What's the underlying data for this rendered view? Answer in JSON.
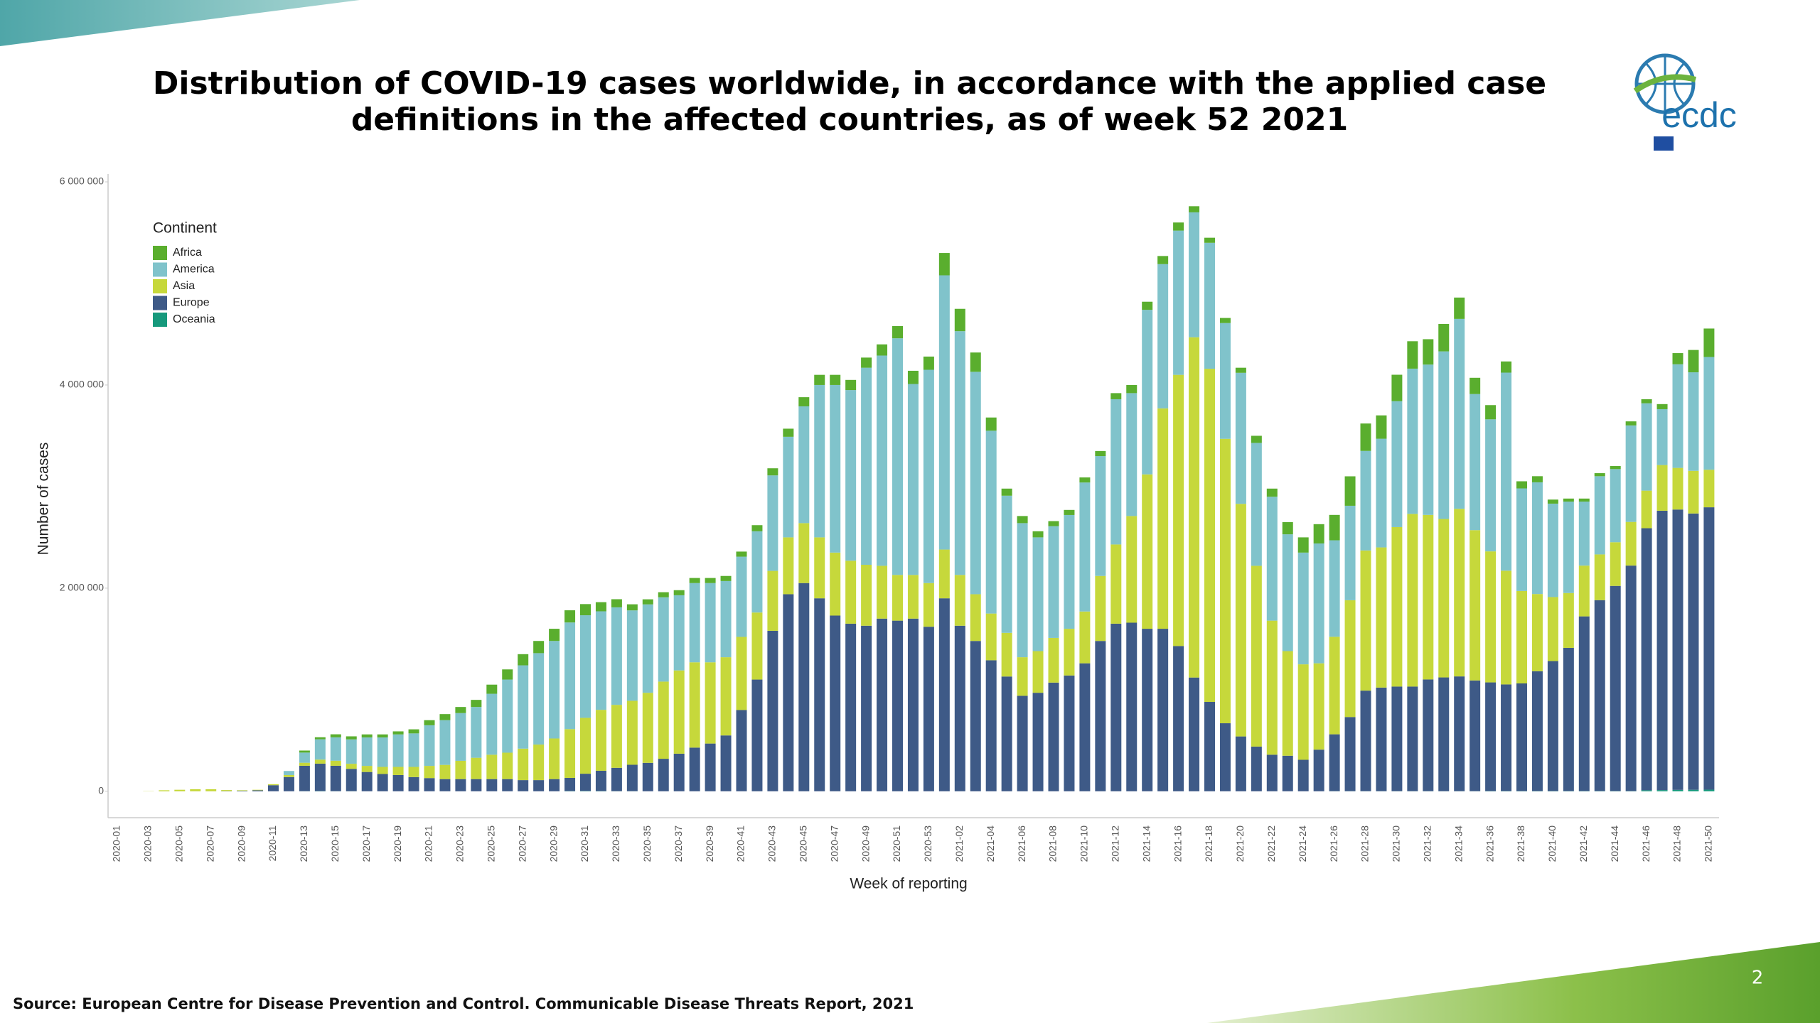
{
  "chart_data": {
    "type": "bar",
    "stacked": true,
    "title": [
      "Distribution of COVID-19 cases worldwide, in accordance with the applied case",
      "definitions in the affected countries, as of week 52 2021"
    ],
    "source": "Source: European Centre for Disease Prevention and Control. Communicable Disease Threats Report, 2021",
    "page_number": "2",
    "logo": "ecdc",
    "x_label": "Week of reporting",
    "y_label": "Number of cases",
    "legend_title": "Continent",
    "legend_position": "upper left",
    "grid": false,
    "ylim": [
      -260000,
      6000000
    ],
    "yticks": [
      0,
      {
        "value": 2000000,
        "label": "2 000 000"
      },
      {
        "value": 4000000,
        "label": "4 000 000"
      },
      {
        "value": 6000000,
        "label": "6 000 000"
      }
    ],
    "categories": [
      "2020-01",
      null,
      "2020-03",
      null,
      "2020-05",
      null,
      "2020-07",
      null,
      "2020-09",
      null,
      "2020-11",
      null,
      "2020-13",
      null,
      "2020-15",
      null,
      "2020-17",
      null,
      "2020-19",
      null,
      "2020-21",
      null,
      "2020-23",
      null,
      "2020-25",
      null,
      "2020-27",
      null,
      "2020-29",
      null,
      "2020-31",
      null,
      "2020-33",
      null,
      "2020-35",
      null,
      "2020-37",
      null,
      "2020-39",
      null,
      "2020-41",
      null,
      "2020-43",
      null,
      "2020-45",
      null,
      "2020-47",
      null,
      "2020-49",
      null,
      "2020-51",
      null,
      "2020-53",
      null,
      "2021-02",
      null,
      "2021-04",
      null,
      "2021-06",
      null,
      "2021-08",
      null,
      "2021-10",
      null,
      "2021-12",
      null,
      "2021-14",
      null,
      "2021-16",
      null,
      "2021-18",
      null,
      "2021-20",
      null,
      "2021-22",
      null,
      "2021-24",
      null,
      "2021-26",
      null,
      "2021-28",
      null,
      "2021-30",
      null,
      "2021-32",
      null,
      "2021-34",
      null,
      "2021-36",
      null,
      "2021-38",
      null,
      "2021-40",
      null,
      "2021-42",
      null,
      "2021-44",
      null,
      "2021-46",
      null,
      "2021-48",
      null,
      "2021-50"
    ],
    "series": [
      {
        "name": "Africa",
        "color": "#5aae2e",
        "values": [
          0,
          0,
          0,
          0,
          0,
          0,
          0,
          0,
          0,
          0,
          0,
          0,
          20000,
          20000,
          30000,
          30000,
          30000,
          30000,
          30000,
          40000,
          50000,
          60000,
          60000,
          70000,
          90000,
          100000,
          110000,
          120000,
          120000,
          120000,
          110000,
          90000,
          80000,
          60000,
          50000,
          50000,
          50000,
          50000,
          50000,
          50000,
          50000,
          60000,
          70000,
          80000,
          90000,
          100000,
          100000,
          100000,
          100000,
          110000,
          120000,
          130000,
          130000,
          220000,
          220000,
          190000,
          130000,
          70000,
          70000,
          60000,
          50000,
          50000,
          50000,
          50000,
          60000,
          80000,
          80000,
          80000,
          80000,
          60000,
          50000,
          50000,
          50000,
          70000,
          80000,
          120000,
          150000,
          190000,
          250000,
          290000,
          270000,
          230000,
          260000,
          270000,
          250000,
          270000,
          210000,
          160000,
          140000,
          110000,
          70000,
          60000,
          40000,
          30000,
          30000,
          30000,
          30000,
          40000,
          40000,
          50000,
          110000,
          220000,
          280000
        ]
      },
      {
        "name": "America",
        "color": "#80c3cb",
        "values": [
          0,
          0,
          0,
          0,
          0,
          0,
          0,
          0,
          0,
          0,
          0,
          40000,
          100000,
          200000,
          230000,
          240000,
          280000,
          290000,
          320000,
          330000,
          400000,
          440000,
          470000,
          500000,
          600000,
          720000,
          820000,
          900000,
          960000,
          1050000,
          1010000,
          970000,
          960000,
          890000,
          870000,
          830000,
          740000,
          780000,
          780000,
          750000,
          790000,
          800000,
          940000,
          990000,
          1150000,
          1500000,
          1650000,
          1680000,
          1940000,
          2070000,
          2330000,
          1880000,
          2100000,
          2700000,
          2400000,
          2190000,
          1800000,
          1350000,
          1320000,
          1120000,
          1100000,
          1120000,
          1270000,
          1180000,
          1430000,
          1210000,
          1620000,
          1420000,
          1420000,
          1230000,
          1240000,
          1140000,
          1290000,
          1210000,
          1220000,
          1150000,
          1100000,
          1180000,
          950000,
          930000,
          980000,
          1070000,
          1240000,
          1430000,
          1480000,
          1650000,
          1870000,
          1340000,
          1300000,
          1950000,
          1010000,
          1100000,
          920000,
          900000,
          630000,
          770000,
          720000,
          950000,
          860000,
          550000,
          1020000,
          970000,
          1110000
        ]
      },
      {
        "name": "Asia",
        "color": "#c6d83b",
        "values": [
          0,
          0,
          2000,
          10000,
          15000,
          20000,
          20000,
          10000,
          5000,
          5000,
          10000,
          20000,
          30000,
          40000,
          50000,
          50000,
          60000,
          70000,
          80000,
          100000,
          120000,
          140000,
          180000,
          210000,
          240000,
          260000,
          310000,
          350000,
          400000,
          480000,
          550000,
          600000,
          620000,
          630000,
          690000,
          760000,
          820000,
          840000,
          800000,
          770000,
          720000,
          660000,
          590000,
          560000,
          590000,
          600000,
          620000,
          620000,
          600000,
          520000,
          450000,
          430000,
          430000,
          480000,
          500000,
          460000,
          460000,
          430000,
          380000,
          410000,
          440000,
          460000,
          510000,
          640000,
          780000,
          1050000,
          1520000,
          2170000,
          2670000,
          3350000,
          3280000,
          2800000,
          2290000,
          1780000,
          1320000,
          1030000,
          940000,
          850000,
          960000,
          1150000,
          1380000,
          1380000,
          1570000,
          1700000,
          1620000,
          1560000,
          1650000,
          1480000,
          1290000,
          1120000,
          910000,
          760000,
          630000,
          540000,
          500000,
          450000,
          430000,
          430000,
          370000,
          450000,
          410000,
          420000,
          370000
        ]
      },
      {
        "name": "Europe",
        "color": "#3e5a87",
        "values": [
          0,
          0,
          0,
          0,
          0,
          0,
          0,
          2000,
          5000,
          10000,
          60000,
          140000,
          250000,
          270000,
          250000,
          220000,
          190000,
          170000,
          160000,
          140000,
          130000,
          120000,
          120000,
          120000,
          120000,
          120000,
          110000,
          110000,
          120000,
          130000,
          170000,
          200000,
          230000,
          260000,
          280000,
          320000,
          370000,
          430000,
          470000,
          550000,
          800000,
          1100000,
          1580000,
          1940000,
          2050000,
          1900000,
          1730000,
          1650000,
          1630000,
          1700000,
          1680000,
          1700000,
          1620000,
          1900000,
          1630000,
          1480000,
          1290000,
          1130000,
          940000,
          970000,
          1070000,
          1140000,
          1260000,
          1480000,
          1650000,
          1660000,
          1600000,
          1600000,
          1430000,
          1120000,
          880000,
          670000,
          540000,
          440000,
          360000,
          350000,
          310000,
          410000,
          560000,
          730000,
          990000,
          1020000,
          1030000,
          1030000,
          1100000,
          1120000,
          1130000,
          1090000,
          1070000,
          1050000,
          1060000,
          1180000,
          1280000,
          1410000,
          1720000,
          1880000,
          2020000,
          2220000,
          2580000,
          2750000,
          2760000,
          2720000,
          2780000
        ]
      },
      {
        "name": "Oceania",
        "color": "#16997c",
        "values": [
          0,
          0,
          0,
          0,
          0,
          0,
          0,
          0,
          0,
          0,
          0,
          0,
          1000,
          2000,
          1000,
          1000,
          0,
          0,
          0,
          0,
          0,
          0,
          0,
          0,
          0,
          0,
          0,
          0,
          0,
          2000,
          3000,
          2000,
          1000,
          1000,
          0,
          0,
          0,
          0,
          0,
          0,
          0,
          0,
          0,
          0,
          0,
          0,
          0,
          0,
          0,
          0,
          0,
          0,
          0,
          0,
          0,
          0,
          0,
          0,
          0,
          0,
          0,
          0,
          0,
          0,
          0,
          0,
          0,
          0,
          0,
          0,
          0,
          0,
          0,
          0,
          0,
          0,
          0,
          0,
          1000,
          1000,
          1000,
          1000,
          1000,
          1000,
          1000,
          1000,
          1000,
          1000,
          2000,
          2000,
          2000,
          2000,
          2000,
          2000,
          2000,
          2000,
          2000,
          2000,
          10000,
          12000,
          14000,
          15000,
          16000
        ]
      }
    ]
  }
}
